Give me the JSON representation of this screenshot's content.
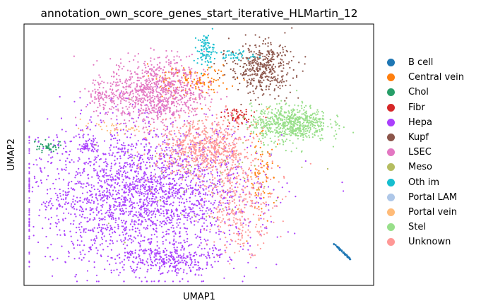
{
  "chart_data": {
    "type": "scatter",
    "title": "annotation_own_score_genes_start_iterative_HLMartin_12",
    "xlabel": "UMAP1",
    "ylabel": "UMAP2",
    "ticks": "none",
    "legend_position": "right-outside",
    "series": [
      {
        "name": "B cell",
        "color": "#1f77b4",
        "clusters": [
          {
            "cx": 0.91,
            "cy": 0.13,
            "sx": 0.02,
            "sy": 0.025,
            "n": 70,
            "shape": "line"
          }
        ]
      },
      {
        "name": "Central vein",
        "color": "#ff7f0e",
        "clusters": [
          {
            "cx": 0.48,
            "cy": 0.78,
            "sx": 0.06,
            "sy": 0.03,
            "n": 140
          },
          {
            "cx": 0.68,
            "cy": 0.43,
            "sx": 0.02,
            "sy": 0.09,
            "n": 80
          }
        ]
      },
      {
        "name": "Chol",
        "color": "#279e68",
        "clusters": [
          {
            "cx": 0.07,
            "cy": 0.53,
            "sx": 0.015,
            "sy": 0.012,
            "n": 45
          }
        ]
      },
      {
        "name": "Fibr",
        "color": "#d62728",
        "clusters": [
          {
            "cx": 0.61,
            "cy": 0.65,
            "sx": 0.025,
            "sy": 0.02,
            "n": 60
          }
        ]
      },
      {
        "name": "Hepa",
        "color": "#aa40fc",
        "clusters": [
          {
            "cx": 0.34,
            "cy": 0.35,
            "sx": 0.16,
            "sy": 0.13,
            "n": 2400
          },
          {
            "cx": 0.41,
            "cy": 0.1,
            "sx": 0.07,
            "sy": 0.03,
            "n": 300
          },
          {
            "cx": 0.18,
            "cy": 0.53,
            "sx": 0.015,
            "sy": 0.01,
            "n": 40
          }
        ]
      },
      {
        "name": "Kupf",
        "color": "#8c564b",
        "clusters": [
          {
            "cx": 0.68,
            "cy": 0.83,
            "sx": 0.045,
            "sy": 0.05,
            "n": 420
          }
        ]
      },
      {
        "name": "LSEC",
        "color": "#e377c2",
        "clusters": [
          {
            "cx": 0.38,
            "cy": 0.74,
            "sx": 0.07,
            "sy": 0.065,
            "n": 900
          },
          {
            "cx": 0.23,
            "cy": 0.73,
            "sx": 0.03,
            "sy": 0.03,
            "n": 80
          }
        ]
      },
      {
        "name": "Meso",
        "color": "#b5bd61",
        "clusters": [
          {
            "cx": 0.5,
            "cy": 0.45,
            "sx": 0.14,
            "sy": 0.12,
            "n": 60
          }
        ]
      },
      {
        "name": "Oth im",
        "color": "#17becf",
        "clusters": [
          {
            "cx": 0.52,
            "cy": 0.9,
            "sx": 0.012,
            "sy": 0.03,
            "n": 90
          },
          {
            "cx": 0.6,
            "cy": 0.88,
            "sx": 0.03,
            "sy": 0.01,
            "n": 40
          }
        ]
      },
      {
        "name": "Portal LAM",
        "color": "#aec7e8",
        "clusters": [
          {
            "cx": 0.5,
            "cy": 0.5,
            "sx": 0.1,
            "sy": 0.1,
            "n": 12
          }
        ]
      },
      {
        "name": "Portal vein",
        "color": "#ffbb78",
        "clusters": [
          {
            "cx": 0.26,
            "cy": 0.6,
            "sx": 0.05,
            "sy": 0.01,
            "n": 40
          }
        ]
      },
      {
        "name": "Stel",
        "color": "#98df8a",
        "clusters": [
          {
            "cx": 0.76,
            "cy": 0.62,
            "sx": 0.055,
            "sy": 0.035,
            "n": 650
          }
        ]
      },
      {
        "name": "Unknown",
        "color": "#ff9896",
        "clusters": [
          {
            "cx": 0.52,
            "cy": 0.52,
            "sx": 0.07,
            "sy": 0.06,
            "n": 700
          },
          {
            "cx": 0.62,
            "cy": 0.3,
            "sx": 0.05,
            "sy": 0.08,
            "n": 300
          }
        ]
      }
    ]
  }
}
